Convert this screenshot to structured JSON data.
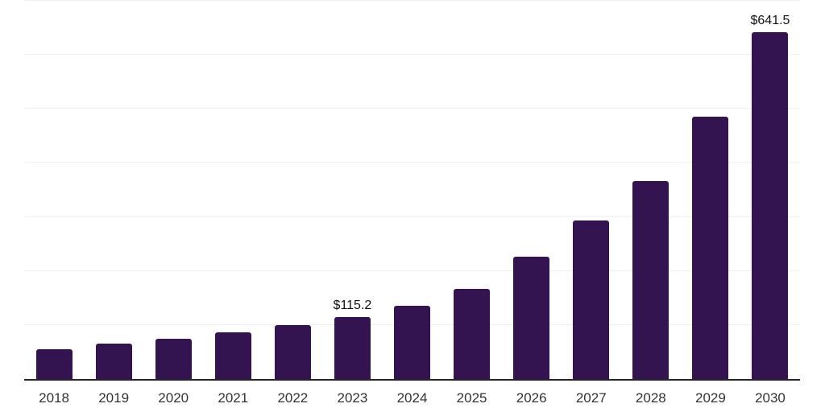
{
  "chart_data": {
    "type": "bar",
    "title": "",
    "xlabel": "",
    "ylabel": "",
    "categories": [
      "2018",
      "2019",
      "2020",
      "2021",
      "2022",
      "2023",
      "2024",
      "2025",
      "2026",
      "2027",
      "2028",
      "2029",
      "2030"
    ],
    "values": [
      55.0,
      66.0,
      74.8,
      86.5,
      100.3,
      115.2,
      135.9,
      166.4,
      226.2,
      293.0,
      366.0,
      485.6,
      641.5
    ],
    "bar_labels": {
      "2023": "$115.2",
      "2030": "$641.5"
    },
    "ylim": [
      0,
      700
    ],
    "grid_interval": 100,
    "grid": true,
    "legend": false,
    "bar_color": "#331450",
    "axis_color": "#262626",
    "gridline_color": "#f0f0f0",
    "value_label_color": "#111111",
    "tick_label_color": "#333333"
  }
}
